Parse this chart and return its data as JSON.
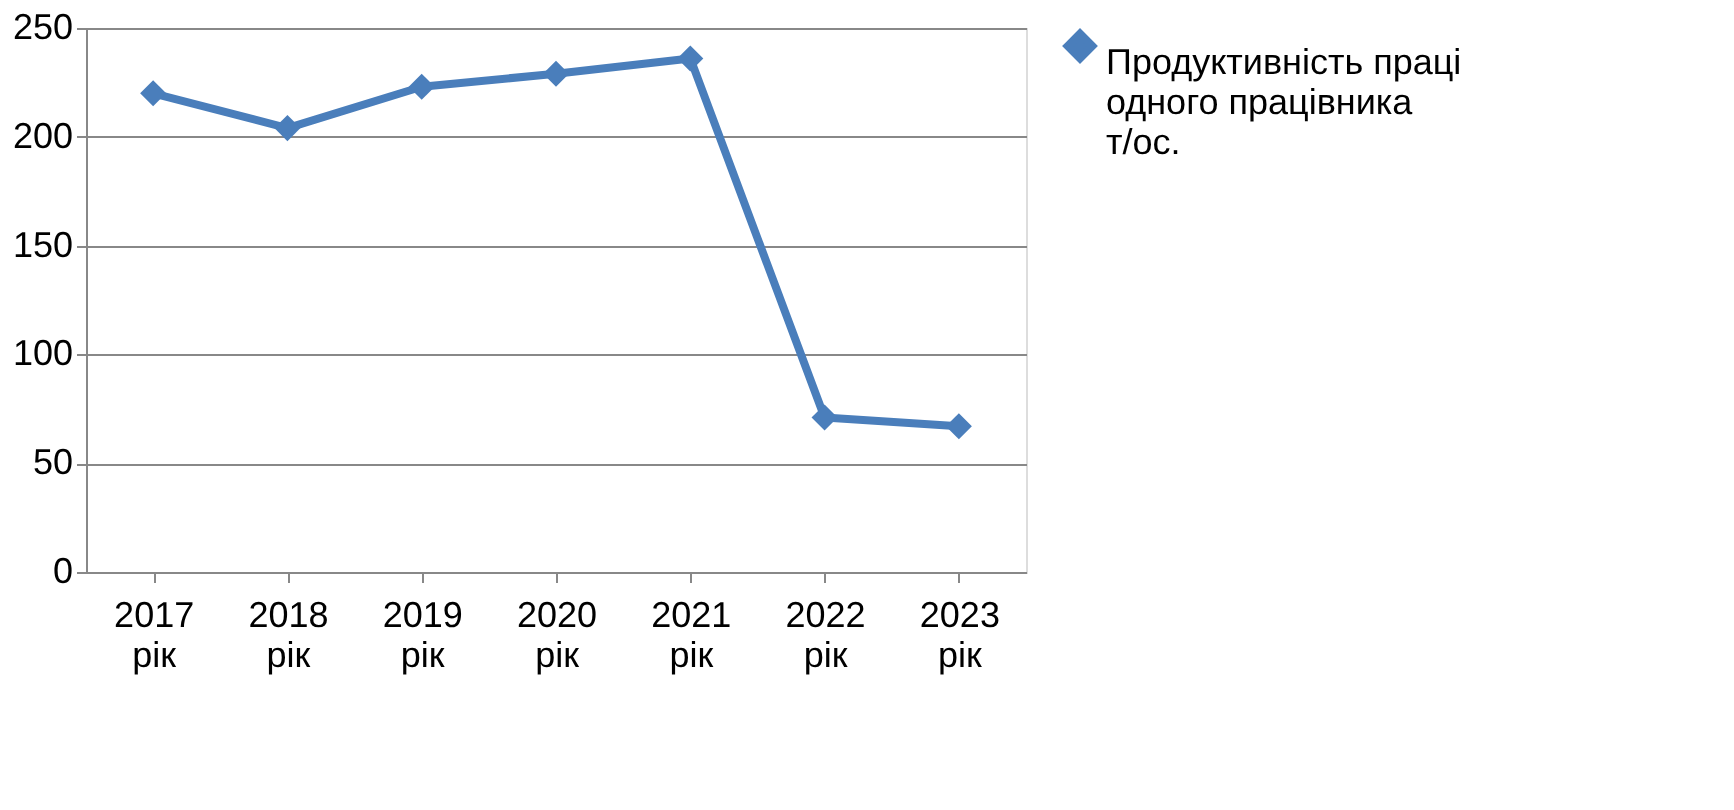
{
  "chart_data": {
    "type": "line",
    "categories": [
      "2017 рік",
      "2018 рік",
      "2019 рік",
      "2020 рік",
      "2021 рік",
      "2022 рік",
      "2023 рік"
    ],
    "series": [
      {
        "name": "Продуктивність праці одного працівника т/ос.",
        "color": "#4a7ebb",
        "values": [
          220,
          204,
          223,
          229,
          236,
          71,
          67
        ]
      }
    ],
    "ylim": [
      0,
      250
    ],
    "yticks": [
      0,
      50,
      100,
      150,
      200,
      250
    ],
    "grid": "y",
    "legend": "right",
    "marker": "diamond",
    "line_style": "solid"
  }
}
